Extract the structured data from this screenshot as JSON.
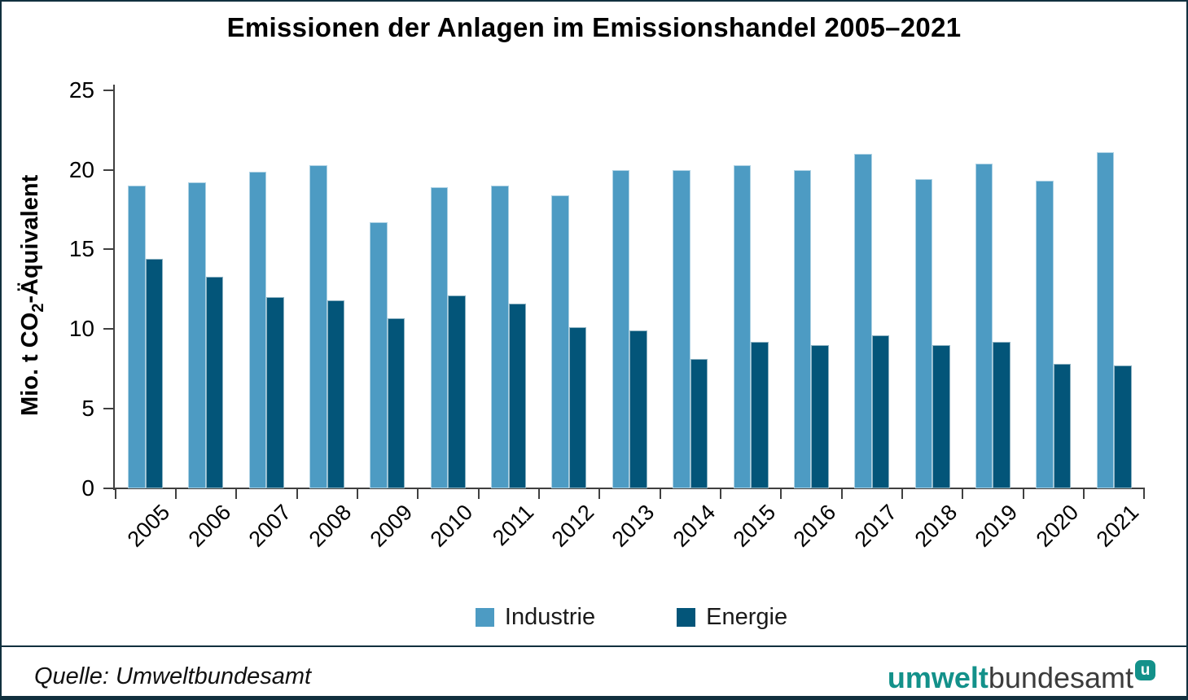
{
  "title": "Emissionen der Anlagen im Emissionshandel 2005–2021",
  "chart_data": {
    "type": "bar",
    "categories": [
      2005,
      2006,
      2007,
      2008,
      2009,
      2010,
      2011,
      2012,
      2013,
      2014,
      2015,
      2016,
      2017,
      2018,
      2019,
      2020,
      2021
    ],
    "series": [
      {
        "name": "Industrie",
        "color": "#4d9bc3",
        "values": [
          19.0,
          19.2,
          19.9,
          20.3,
          16.7,
          18.9,
          19.0,
          18.4,
          20.0,
          20.0,
          20.3,
          20.0,
          21.0,
          19.4,
          20.4,
          19.3,
          21.1
        ]
      },
      {
        "name": "Energie",
        "color": "#035579",
        "values": [
          14.4,
          13.3,
          12.0,
          11.8,
          10.7,
          12.1,
          11.6,
          10.1,
          9.9,
          8.1,
          9.2,
          9.0,
          9.6,
          9.0,
          9.2,
          7.8,
          7.7
        ]
      }
    ],
    "xlabel": "",
    "ylabel": "Mio. t CO₂-Äquivalent",
    "ylabel_parts": {
      "pre": "Mio. t CO",
      "sub": "2",
      "post": "-Äquivalent"
    },
    "yticks": [
      0,
      5,
      10,
      15,
      20,
      25
    ],
    "ylim": [
      0,
      25
    ],
    "grid": false,
    "legend_position": "bottom"
  },
  "footer": {
    "source": "Quelle: Umweltbundesamt",
    "logo": {
      "bold": "umwelt",
      "regular": "bundesamt",
      "badge": "u",
      "badge_color": "#13918a"
    }
  },
  "colors": {
    "axis": "#404040",
    "border": "#11303e",
    "background": "#ffffff"
  }
}
